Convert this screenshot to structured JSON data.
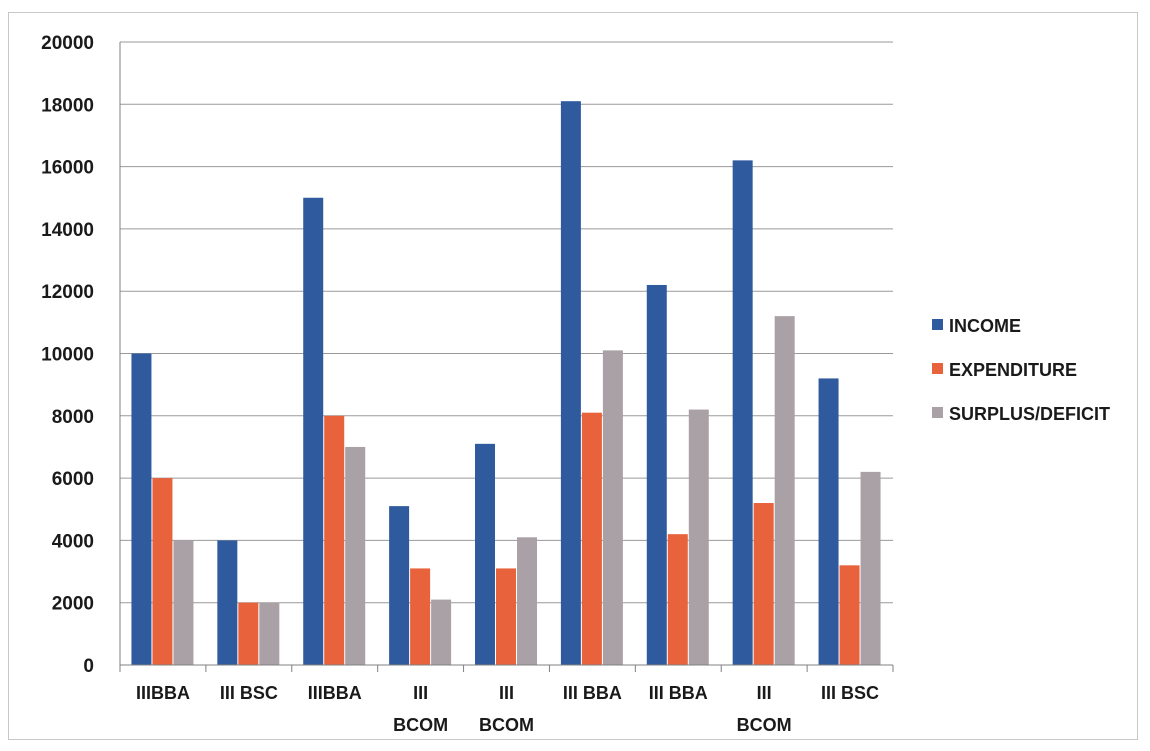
{
  "chart_data": {
    "type": "bar",
    "categories": [
      [
        "IIIBBA"
      ],
      [
        "III BSC"
      ],
      [
        "IIIBBA"
      ],
      [
        "III",
        "BCOM"
      ],
      [
        "III",
        "BCOM"
      ],
      [
        "III BBA"
      ],
      [
        "III BBA"
      ],
      [
        "III",
        "BCOM"
      ],
      [
        "III BSC"
      ]
    ],
    "series": [
      {
        "name": "INCOME",
        "color": "#2f5b9e",
        "values": [
          10000,
          4000,
          15000,
          5100,
          7100,
          18100,
          12200,
          16200,
          9200
        ]
      },
      {
        "name": "EXPENDITURE",
        "color": "#e8623c",
        "values": [
          6000,
          2000,
          8000,
          3100,
          3100,
          8100,
          4200,
          5200,
          3200
        ]
      },
      {
        "name": "SURPLUS/DEFICIT",
        "color": "#aaa1a6",
        "values": [
          4000,
          2000,
          7000,
          2100,
          4100,
          10100,
          8200,
          11200,
          6200
        ]
      }
    ],
    "ylim": [
      0,
      20000
    ],
    "yticks": [
      0,
      2000,
      4000,
      6000,
      8000,
      10000,
      12000,
      14000,
      16000,
      18000,
      20000
    ],
    "grid": true,
    "legend": "right",
    "title": "",
    "xlabel": "",
    "ylabel": ""
  }
}
